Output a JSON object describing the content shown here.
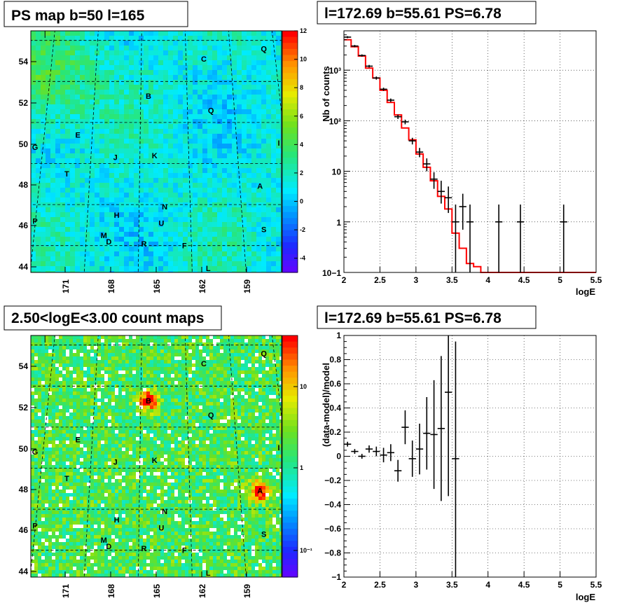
{
  "chart_data": [
    {
      "type": "heatmap",
      "title": "PS map b=50 l=165",
      "x_ticks": [
        "171",
        "168",
        "165",
        "162",
        "159"
      ],
      "y_ticks": [
        "54",
        "52",
        "50",
        "48",
        "46",
        "44"
      ],
      "colorbar_ticks": [
        "12",
        "10",
        "8",
        "6",
        "4",
        "2",
        "0",
        "-2",
        "-4"
      ],
      "colorbar_range": [
        -5,
        12
      ],
      "source_labels": [
        {
          "name": "C",
          "l": 161.8,
          "b": 54.1
        },
        {
          "name": "Q",
          "l": 157.7,
          "b": 54.6
        },
        {
          "name": "B",
          "l": 165.5,
          "b": 52.3
        },
        {
          "name": "Q",
          "l": 161.5,
          "b": 51.6
        },
        {
          "name": "E",
          "l": 169.9,
          "b": 50.4
        },
        {
          "name": "G",
          "l": 172.8,
          "b": 49.8
        },
        {
          "name": "I",
          "l": 157.3,
          "b": 50.0
        },
        {
          "name": "J",
          "l": 167.5,
          "b": 49.3
        },
        {
          "name": "K",
          "l": 165.1,
          "b": 49.4
        },
        {
          "name": "T",
          "l": 170.4,
          "b": 48.5
        },
        {
          "name": "A",
          "l": 158.8,
          "b": 47.9
        },
        {
          "name": "N",
          "l": 164.5,
          "b": 46.9
        },
        {
          "name": "H",
          "l": 167.3,
          "b": 46.5
        },
        {
          "name": "U",
          "l": 164.7,
          "b": 46.1
        },
        {
          "name": "P",
          "l": 174.4,
          "b": 46.2
        },
        {
          "name": "S",
          "l": 158.8,
          "b": 45.8
        },
        {
          "name": "M",
          "l": 168.0,
          "b": 45.5
        },
        {
          "name": "D",
          "l": 167.7,
          "b": 45.2
        },
        {
          "name": "R",
          "l": 165.7,
          "b": 45.1
        },
        {
          "name": "F",
          "l": 163.4,
          "b": 45.0
        },
        {
          "name": "L",
          "l": 162.1,
          "b": 43.9
        }
      ]
    },
    {
      "type": "line",
      "title": "l=172.69 b=55.61 PS=6.78",
      "xlabel": "logE",
      "ylabel": "Nb of counts",
      "xlim": [
        2,
        5.5
      ],
      "ylim": [
        0.1,
        6000
      ],
      "yscale": "log",
      "grid": true,
      "x_ticks": [
        "2",
        "2.5",
        "3",
        "3.5",
        "4",
        "4.5",
        "5",
        "5.5"
      ],
      "y_ticks": [
        "10−1",
        "1",
        "10",
        "10²",
        "10³"
      ],
      "model_color": "#ff0000",
      "model": {
        "bin_edges": [
          2.0,
          2.1,
          2.2,
          2.3,
          2.4,
          2.5,
          2.6,
          2.7,
          2.8,
          2.9,
          3.0,
          3.1,
          3.2,
          3.3,
          3.4,
          3.5,
          3.6,
          3.7,
          3.8,
          3.9,
          4.0,
          5.5
        ],
        "values": [
          4000,
          2900,
          1900,
          1100,
          700,
          400,
          230,
          130,
          72,
          42,
          22,
          12,
          6.5,
          3.2,
          1.8,
          0.6,
          0.3,
          0.15,
          0.13,
          0.1,
          0.1
        ]
      },
      "data_points": [
        {
          "x": 2.05,
          "y": 4500,
          "lo": 4300,
          "hi": 4700
        },
        {
          "x": 2.15,
          "y": 3000,
          "lo": 2850,
          "hi": 3150
        },
        {
          "x": 2.25,
          "y": 1950,
          "lo": 1850,
          "hi": 2050
        },
        {
          "x": 2.35,
          "y": 1200,
          "lo": 1130,
          "hi": 1270
        },
        {
          "x": 2.45,
          "y": 700,
          "lo": 650,
          "hi": 750
        },
        {
          "x": 2.55,
          "y": 420,
          "lo": 390,
          "hi": 450
        },
        {
          "x": 2.65,
          "y": 255,
          "lo": 235,
          "hi": 275
        },
        {
          "x": 2.75,
          "y": 120,
          "lo": 108,
          "hi": 132
        },
        {
          "x": 2.85,
          "y": 95,
          "lo": 85,
          "hi": 105
        },
        {
          "x": 2.95,
          "y": 40,
          "lo": 34,
          "hi": 46
        },
        {
          "x": 3.05,
          "y": 24,
          "lo": 19,
          "hi": 29
        },
        {
          "x": 3.15,
          "y": 14,
          "lo": 10,
          "hi": 18
        },
        {
          "x": 3.25,
          "y": 7,
          "lo": 4.5,
          "hi": 9.6
        },
        {
          "x": 3.35,
          "y": 4,
          "lo": 2.3,
          "hi": 6.5
        },
        {
          "x": 3.45,
          "y": 3,
          "lo": 1.5,
          "hi": 5
        },
        {
          "x": 3.55,
          "y": 1,
          "lo": 0.1,
          "hi": 2.2
        },
        {
          "x": 3.65,
          "y": 2,
          "lo": 0.7,
          "hi": 3.6
        },
        {
          "x": 3.75,
          "y": 1,
          "lo": 0.1,
          "hi": 2.2
        },
        {
          "x": 4.15,
          "y": 1,
          "lo": 0.1,
          "hi": 2.2
        },
        {
          "x": 4.45,
          "y": 1,
          "lo": 0.1,
          "hi": 2.2
        },
        {
          "x": 5.05,
          "y": 1,
          "lo": 0.1,
          "hi": 2.2
        }
      ]
    },
    {
      "type": "heatmap",
      "title": "2.50<logE<3.00 count maps",
      "x_ticks": [
        "171",
        "168",
        "165",
        "162",
        "159"
      ],
      "y_ticks": [
        "54",
        "52",
        "50",
        "48",
        "46",
        "44"
      ],
      "colorbar_ticks": [
        "10",
        "1",
        "10⁻¹"
      ],
      "colorbar_scale": "log",
      "source_labels": [
        {
          "name": "C",
          "l": 161.8,
          "b": 54.1
        },
        {
          "name": "Q",
          "l": 157.7,
          "b": 54.6
        },
        {
          "name": "B",
          "l": 165.5,
          "b": 52.3
        },
        {
          "name": "Q",
          "l": 161.5,
          "b": 51.6
        },
        {
          "name": "E",
          "l": 169.9,
          "b": 50.4
        },
        {
          "name": "G",
          "l": 172.8,
          "b": 49.8
        },
        {
          "name": "I",
          "l": 157.3,
          "b": 50.0
        },
        {
          "name": "J",
          "l": 167.5,
          "b": 49.3
        },
        {
          "name": "K",
          "l": 165.1,
          "b": 49.4
        },
        {
          "name": "T",
          "l": 170.4,
          "b": 48.5
        },
        {
          "name": "A",
          "l": 158.8,
          "b": 47.9
        },
        {
          "name": "N",
          "l": 164.5,
          "b": 46.9
        },
        {
          "name": "H",
          "l": 167.3,
          "b": 46.5
        },
        {
          "name": "U",
          "l": 164.7,
          "b": 46.1
        },
        {
          "name": "P",
          "l": 174.4,
          "b": 46.2
        },
        {
          "name": "S",
          "l": 158.8,
          "b": 45.8
        },
        {
          "name": "M",
          "l": 168.0,
          "b": 45.5
        },
        {
          "name": "D",
          "l": 167.7,
          "b": 45.2
        },
        {
          "name": "R",
          "l": 165.7,
          "b": 45.1
        },
        {
          "name": "F",
          "l": 163.4,
          "b": 45.0
        },
        {
          "name": "L",
          "l": 162.1,
          "b": 43.9
        }
      ],
      "bright_sources": [
        "B",
        "A"
      ]
    },
    {
      "type": "scatter",
      "title": "l=172.69 b=55.61 PS=6.78",
      "xlabel": "logE",
      "ylabel": "(data-model)/model",
      "xlim": [
        2,
        5.5
      ],
      "ylim": [
        -1,
        1
      ],
      "grid": true,
      "x_ticks": [
        "2",
        "2.5",
        "3",
        "3.5",
        "4",
        "4.5",
        "5",
        "5.5"
      ],
      "y_ticks": [
        "1",
        "0.8",
        "0.6",
        "0.4",
        "0.2",
        "0",
        "−0.2",
        "−0.4",
        "−0.6",
        "−0.8",
        "−1"
      ],
      "data_points": [
        {
          "x": 2.05,
          "y": 0.1,
          "lo": 0.08,
          "hi": 0.12
        },
        {
          "x": 2.15,
          "y": 0.04,
          "lo": 0.02,
          "hi": 0.06
        },
        {
          "x": 2.25,
          "y": 0.0,
          "lo": -0.02,
          "hi": 0.02
        },
        {
          "x": 2.35,
          "y": 0.06,
          "lo": 0.03,
          "hi": 0.09
        },
        {
          "x": 2.45,
          "y": 0.04,
          "lo": 0.0,
          "hi": 0.08
        },
        {
          "x": 2.55,
          "y": 0.01,
          "lo": -0.05,
          "hi": 0.07
        },
        {
          "x": 2.65,
          "y": 0.03,
          "lo": -0.04,
          "hi": 0.1
        },
        {
          "x": 2.75,
          "y": -0.12,
          "lo": -0.21,
          "hi": -0.03
        },
        {
          "x": 2.85,
          "y": 0.24,
          "lo": 0.1,
          "hi": 0.38
        },
        {
          "x": 2.95,
          "y": -0.02,
          "lo": -0.17,
          "hi": 0.13
        },
        {
          "x": 3.05,
          "y": 0.06,
          "lo": -0.15,
          "hi": 0.27
        },
        {
          "x": 3.15,
          "y": 0.19,
          "lo": -0.11,
          "hi": 0.49
        },
        {
          "x": 3.25,
          "y": 0.18,
          "lo": -0.27,
          "hi": 0.63
        },
        {
          "x": 3.35,
          "y": 0.23,
          "lo": -0.37,
          "hi": 0.83
        },
        {
          "x": 3.45,
          "y": 0.53,
          "lo": -0.33,
          "hi": 1.0
        },
        {
          "x": 3.55,
          "y": -0.02,
          "lo": -1.0,
          "hi": 0.95
        }
      ]
    }
  ]
}
